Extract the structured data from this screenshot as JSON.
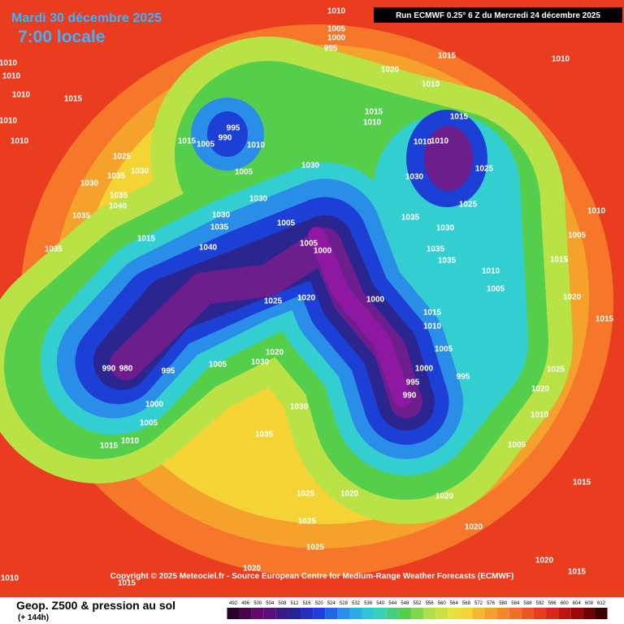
{
  "header": {
    "date": "Mardi 30 décembre 2025",
    "time": "7:00 locale",
    "run": "Run ECMWF 0.25° 6 Z du Mercredi 24 décembre 2025"
  },
  "footer": {
    "copyright": "Copyright © 2025 Meteociel.fr - Source European Centre for Medium-Range Weather Forecasts (ECMWF)"
  },
  "legend": {
    "title": "Geop. Z500 & pression au sol",
    "subtitle": "(+ 144h)",
    "levels": [
      492,
      496,
      500,
      504,
      508,
      512,
      516,
      520,
      524,
      528,
      532,
      536,
      540,
      544,
      548,
      552,
      556,
      560,
      564,
      568,
      572,
      576,
      580,
      584,
      588,
      592,
      596,
      600,
      604,
      608,
      612
    ]
  },
  "isobar_labels": [
    "1010",
    "1005",
    "1000",
    "995",
    "1015",
    "1010",
    "1020",
    "1010",
    "1010",
    "1010",
    "1010",
    "1015",
    "1010",
    "1010",
    "995",
    "990",
    "1005",
    "1015",
    "1010",
    "1015",
    "1010",
    "1010",
    "1010",
    "1015",
    "1025",
    "1030",
    "1035",
    "1030",
    "1035",
    "1040",
    "1035",
    "1035",
    "1015",
    "1030",
    "1005",
    "1030",
    "1030",
    "1035",
    "1040",
    "1005",
    "1005",
    "1000",
    "1030",
    "1035",
    "1030",
    "1025",
    "1025",
    "1035",
    "1035",
    "1020",
    "1025",
    "1000",
    "1015",
    "1010",
    "1005",
    "1000",
    "995",
    "990",
    "995",
    "990",
    "980",
    "995",
    "1005",
    "1020",
    "1030",
    "1030",
    "1000",
    "1005",
    "1010",
    "1015",
    "1035",
    "1025",
    "1020",
    "1020",
    "1025",
    "1025",
    "1020",
    "1015",
    "1010",
    "1020",
    "1025",
    "1020",
    "1015",
    "1010",
    "1005",
    "1015",
    "1010",
    "1005",
    "1005",
    "1010",
    "1015",
    "1020",
    "1020",
    "1015"
  ]
}
